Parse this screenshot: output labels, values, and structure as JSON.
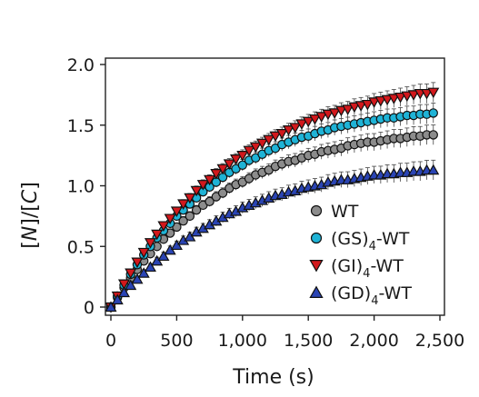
{
  "chart_data": {
    "type": "scatter",
    "xlabel": "Time (s)",
    "ylabel_parts": [
      "[",
      "N",
      "]/[",
      "C",
      "]"
    ],
    "xlim": [
      0,
      2500
    ],
    "ylim": [
      0,
      2.0
    ],
    "x_ticks": [
      0,
      500,
      1000,
      1500,
      2000,
      2500
    ],
    "x_tick_labels": [
      "0",
      "500",
      "1,000",
      "1,500",
      "2,000",
      "2,500"
    ],
    "y_ticks": [
      0,
      0.5,
      1.0,
      1.5,
      2.0
    ],
    "y_tick_labels": [
      "0",
      "0.5",
      "1.0",
      "1.5",
      "2.0"
    ],
    "grid": false,
    "legend_placement": "bottom-right",
    "x": [
      0,
      50,
      100,
      150,
      200,
      250,
      300,
      350,
      400,
      450,
      500,
      550,
      600,
      650,
      700,
      750,
      800,
      850,
      900,
      950,
      1000,
      1050,
      1100,
      1150,
      1200,
      1250,
      1300,
      1350,
      1400,
      1450,
      1500,
      1550,
      1600,
      1650,
      1700,
      1750,
      1800,
      1850,
      1900,
      1950,
      2000,
      2050,
      2100,
      2150,
      2200,
      2250,
      2300,
      2350,
      2400,
      2450
    ],
    "series": [
      {
        "name": "WT",
        "name_main": "WT",
        "name_sub": "",
        "name_suffix": "",
        "marker": "circle",
        "color": "#8c8c8c",
        "values": [
          0,
          0.08,
          0.16,
          0.24,
          0.31,
          0.38,
          0.44,
          0.5,
          0.56,
          0.61,
          0.66,
          0.71,
          0.75,
          0.8,
          0.84,
          0.87,
          0.91,
          0.94,
          0.98,
          1.01,
          1.03,
          1.06,
          1.09,
          1.11,
          1.13,
          1.16,
          1.18,
          1.2,
          1.21,
          1.23,
          1.25,
          1.26,
          1.28,
          1.29,
          1.3,
          1.31,
          1.33,
          1.34,
          1.35,
          1.36,
          1.36,
          1.37,
          1.38,
          1.39,
          1.39,
          1.4,
          1.41,
          1.41,
          1.42,
          1.42
        ]
      },
      {
        "name": "(GS)4-WT",
        "name_main": "(GS)",
        "name_sub": "4",
        "name_suffix": "-WT",
        "marker": "circle",
        "color": "#1fb3d6",
        "values": [
          0,
          0.09,
          0.18,
          0.27,
          0.35,
          0.43,
          0.5,
          0.57,
          0.63,
          0.69,
          0.75,
          0.8,
          0.85,
          0.9,
          0.95,
          0.99,
          1.03,
          1.07,
          1.11,
          1.14,
          1.17,
          1.21,
          1.23,
          1.26,
          1.29,
          1.31,
          1.34,
          1.36,
          1.38,
          1.4,
          1.41,
          1.43,
          1.45,
          1.46,
          1.48,
          1.49,
          1.5,
          1.51,
          1.52,
          1.53,
          1.54,
          1.55,
          1.56,
          1.56,
          1.57,
          1.58,
          1.58,
          1.59,
          1.59,
          1.6
        ]
      },
      {
        "name": "(GI)4-WT",
        "name_main": "(GI)",
        "name_sub": "4",
        "name_suffix": "-WT",
        "marker": "triangle-down",
        "color": "#d2181c",
        "values": [
          0,
          0.09,
          0.19,
          0.28,
          0.37,
          0.45,
          0.53,
          0.6,
          0.67,
          0.73,
          0.79,
          0.85,
          0.9,
          0.96,
          1.01,
          1.05,
          1.1,
          1.14,
          1.18,
          1.22,
          1.25,
          1.29,
          1.32,
          1.35,
          1.38,
          1.41,
          1.43,
          1.46,
          1.48,
          1.51,
          1.53,
          1.55,
          1.57,
          1.59,
          1.6,
          1.62,
          1.63,
          1.65,
          1.66,
          1.67,
          1.69,
          1.7,
          1.71,
          1.72,
          1.73,
          1.74,
          1.75,
          1.76,
          1.76,
          1.77
        ]
      },
      {
        "name": "(GD)4-WT",
        "name_main": "(GD)",
        "name_sub": "4",
        "name_suffix": "-WT",
        "marker": "triangle-up",
        "color": "#2a44b4",
        "values": [
          0,
          0.06,
          0.12,
          0.18,
          0.23,
          0.28,
          0.33,
          0.38,
          0.42,
          0.47,
          0.51,
          0.55,
          0.58,
          0.62,
          0.65,
          0.68,
          0.71,
          0.74,
          0.77,
          0.79,
          0.82,
          0.84,
          0.86,
          0.88,
          0.9,
          0.92,
          0.93,
          0.95,
          0.96,
          0.98,
          0.99,
          1.0,
          1.01,
          1.03,
          1.04,
          1.05,
          1.05,
          1.06,
          1.07,
          1.08,
          1.09,
          1.09,
          1.1,
          1.1,
          1.11,
          1.11,
          1.12,
          1.12,
          1.13,
          1.13
        ]
      }
    ]
  }
}
